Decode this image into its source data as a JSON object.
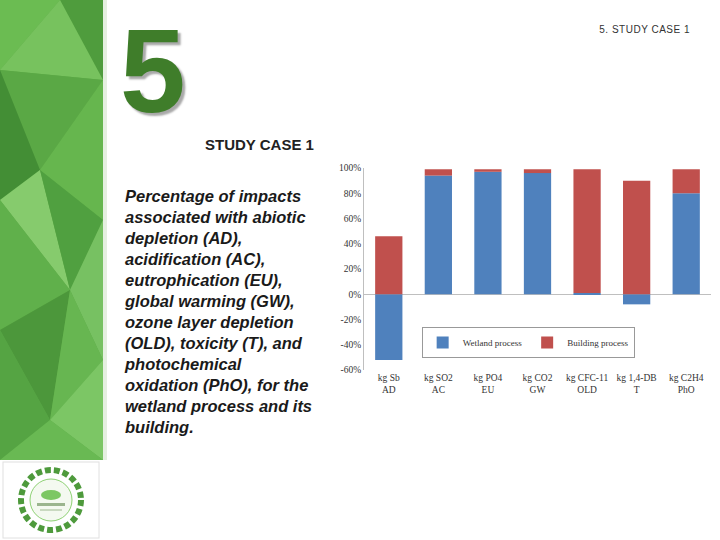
{
  "page": {
    "header": "5. STUDY CASE 1",
    "number": "5",
    "heading": "STUDY CASE 1",
    "caption": [
      "Percentage of impacts",
      "associated with abiotic",
      "depletion (AD),",
      "acidification (AC),",
      "eutrophication (EU),",
      "global warming (GW),",
      "ozone layer depletion",
      "(OLD), toxicity (T), and",
      "photochemical",
      "oxidation (PhO), for the",
      "wetland process and its",
      "building."
    ]
  },
  "chart_data": {
    "type": "bar",
    "stacked": true,
    "categories": [
      "kg Sb\nAD",
      "kg SO2\nAC",
      "kg PO4\nEU",
      "kg CO2\nGW",
      "kg CFC-11\nOLD",
      "kg 1,4-DB\nT",
      "kg C2H4\nPhO"
    ],
    "series": [
      {
        "name": "Wetland process",
        "color": "#4f81bd",
        "values": [
          -52,
          94,
          97,
          96,
          1,
          -8,
          80
        ]
      },
      {
        "name": "Building process",
        "color": "#c0504d",
        "values": [
          46,
          5,
          2,
          3,
          98,
          90,
          19
        ]
      }
    ],
    "ylim": [
      -60,
      100
    ],
    "yticks": [
      {
        "value": -60,
        "label": "-60%"
      },
      {
        "value": -40,
        "label": "-40%"
      },
      {
        "value": -20,
        "label": "-20%"
      },
      {
        "value": 0,
        "label": "0%"
      },
      {
        "value": 20,
        "label": "20%"
      },
      {
        "value": 40,
        "label": "40%"
      },
      {
        "value": 60,
        "label": "60%"
      },
      {
        "value": 80,
        "label": "80%"
      },
      {
        "value": 100,
        "label": "100%"
      }
    ],
    "grid": false,
    "legend": "lower right"
  }
}
